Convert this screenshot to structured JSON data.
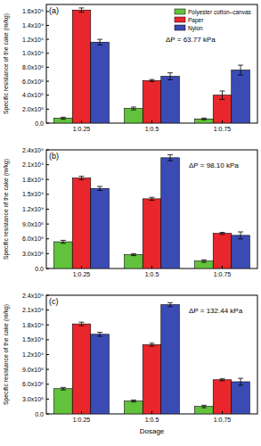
{
  "chart_data": [
    {
      "type": "bar",
      "title": "(a)",
      "annotation": "ΔP = 63.77 kPa",
      "y_label": "Specific resistance of the cake (m/kg)",
      "categories": [
        "1:0.25",
        "1:0.5",
        "1:0.75"
      ],
      "series": [
        {
          "name": "Polyester cotton–canvas",
          "color": "#62c23c",
          "values": [
            70000000,
            210000000,
            60000000
          ],
          "errors": [
            15000000,
            20000000,
            12000000
          ]
        },
        {
          "name": "Paper",
          "color": "#e8262b",
          "values": [
            1620000000,
            610000000,
            400000000
          ],
          "errors": [
            30000000,
            15000000,
            60000000
          ]
        },
        {
          "name": "Nylon",
          "color": "#3a4cb4",
          "values": [
            1160000000,
            670000000,
            760000000
          ],
          "errors": [
            40000000,
            50000000,
            70000000
          ]
        }
      ],
      "ylim": [
        0,
        1700000000
      ],
      "yticks": [
        {
          "value": 0,
          "label": "0.0"
        },
        {
          "value": 200000000,
          "label": "2.0x10⁸"
        },
        {
          "value": 400000000,
          "label": "4.0x10⁸"
        },
        {
          "value": 600000000,
          "label": "6.0x10⁸"
        },
        {
          "value": 800000000,
          "label": "8.0x10⁸"
        },
        {
          "value": 1000000000,
          "label": "1.0x10⁹"
        },
        {
          "value": 1200000000,
          "label": "1.2x10⁹"
        },
        {
          "value": 1400000000,
          "label": "1.4x10⁹"
        },
        {
          "value": 1600000000,
          "label": "1.6x10⁹"
        }
      ],
      "legend": "top-right"
    },
    {
      "type": "bar",
      "title": "(b)",
      "annotation": "ΔP = 98.10 kPa",
      "y_label": "Specific resistance of the cake (m/kg)",
      "categories": [
        "1:0.25",
        "1:0.5",
        "1:0.75"
      ],
      "series": [
        {
          "name": "Polyester cotton–canvas",
          "color": "#62c23c",
          "values": [
            540000000,
            280000000,
            150000000
          ],
          "errors": [
            30000000,
            20000000,
            25000000
          ]
        },
        {
          "name": "Paper",
          "color": "#e8262b",
          "values": [
            1830000000,
            1410000000,
            710000000
          ],
          "errors": [
            35000000,
            30000000,
            20000000
          ]
        },
        {
          "name": "Nylon",
          "color": "#3a4cb4",
          "values": [
            1620000000,
            2240000000,
            670000000
          ],
          "errors": [
            40000000,
            60000000,
            70000000
          ]
        }
      ],
      "ylim": [
        0,
        2400000000
      ],
      "yticks": [
        {
          "value": 0,
          "label": "0.0"
        },
        {
          "value": 300000000,
          "label": "3.0x10⁸"
        },
        {
          "value": 600000000,
          "label": "6.0x10⁸"
        },
        {
          "value": 900000000,
          "label": "9.0x10⁸"
        },
        {
          "value": 1200000000,
          "label": "1.2x10⁹"
        },
        {
          "value": 1500000000,
          "label": "1.5x10⁹"
        },
        {
          "value": 1800000000,
          "label": "1.8x10⁹"
        },
        {
          "value": 2100000000,
          "label": "2.1x10⁹"
        },
        {
          "value": 2400000000,
          "label": "2.4x10⁹"
        }
      ]
    },
    {
      "type": "bar",
      "title": "(c)",
      "annotation": "ΔP = 132.44 kPa",
      "y_label": "Specific resistance of the cake (m/kg)",
      "x_label": "Dosage",
      "categories": [
        "1:0.25",
        "1:0.5",
        "1:0.75"
      ],
      "series": [
        {
          "name": "Polyester cotton–canvas",
          "color": "#62c23c",
          "values": [
            510000000,
            260000000,
            150000000
          ],
          "errors": [
            25000000,
            20000000,
            25000000
          ]
        },
        {
          "name": "Paper",
          "color": "#e8262b",
          "values": [
            1820000000,
            1400000000,
            690000000
          ],
          "errors": [
            35000000,
            30000000,
            20000000
          ]
        },
        {
          "name": "Nylon",
          "color": "#3a4cb4",
          "values": [
            1610000000,
            2210000000,
            650000000
          ],
          "errors": [
            40000000,
            40000000,
            70000000
          ]
        }
      ],
      "ylim": [
        0,
        2400000000
      ],
      "yticks": [
        {
          "value": 0,
          "label": "0.0"
        },
        {
          "value": 300000000,
          "label": "3.0x10⁸"
        },
        {
          "value": 600000000,
          "label": "6.0x10⁸"
        },
        {
          "value": 900000000,
          "label": "9.0x10⁸"
        },
        {
          "value": 1200000000,
          "label": "1.2x10⁹"
        },
        {
          "value": 1500000000,
          "label": "1.5x10⁹"
        },
        {
          "value": 1800000000,
          "label": "1.8x10⁹"
        },
        {
          "value": 2100000000,
          "label": "2.1x10⁹"
        },
        {
          "value": 2400000000,
          "label": "2.4x10⁹"
        }
      ]
    }
  ]
}
